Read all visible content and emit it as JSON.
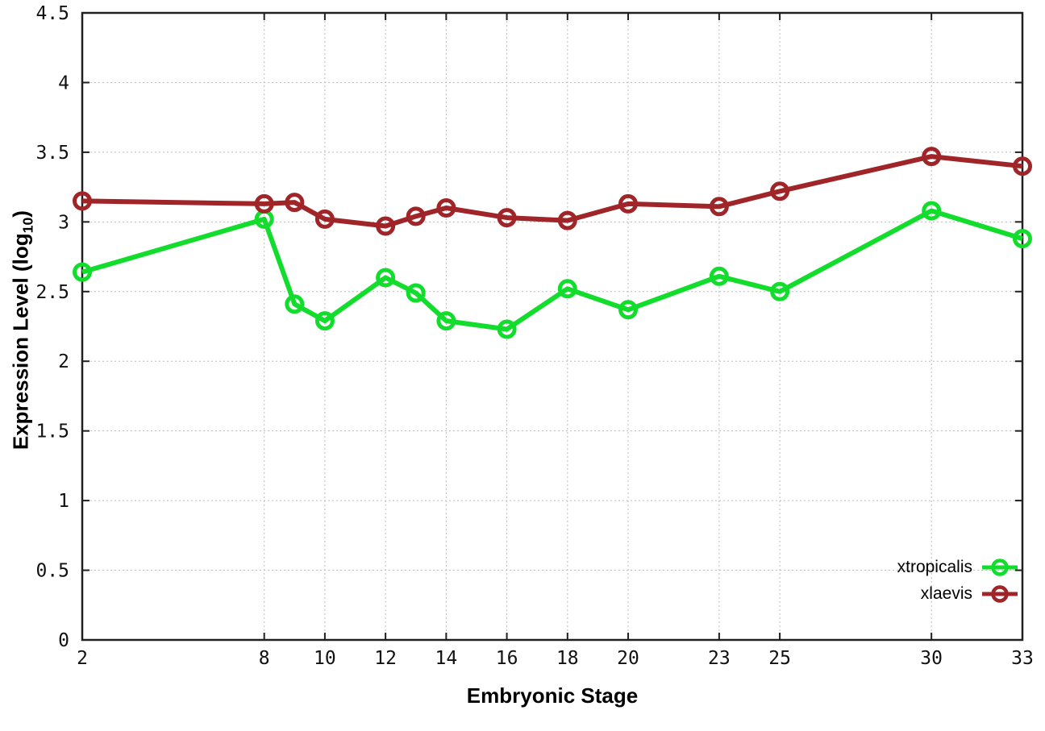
{
  "chart_data": {
    "type": "line",
    "title": "",
    "xlabel": "Embryonic Stage",
    "ylabel": "Expression Level (log10)",
    "ylabel_parts": {
      "prefix": "Expression Level (log",
      "sub": "10",
      "suffix": ")"
    },
    "x": [
      2,
      8,
      9,
      10,
      12,
      13,
      14,
      16,
      18,
      20,
      23,
      25,
      30,
      33
    ],
    "xticks": [
      2,
      8,
      10,
      12,
      14,
      16,
      18,
      20,
      23,
      25,
      30,
      33
    ],
    "yticks": [
      0,
      0.5,
      1,
      1.5,
      2,
      2.5,
      3,
      3.5,
      4,
      4.5
    ],
    "xlim": [
      2,
      33
    ],
    "ylim": [
      0,
      4.5
    ],
    "grid": true,
    "grid_style": "dotted",
    "legend_position": "bottom-right",
    "marker": "open-circle",
    "series": [
      {
        "name": "xtropicalis",
        "color": "#12dd2c",
        "values": [
          2.64,
          3.02,
          2.41,
          2.29,
          2.6,
          2.49,
          2.29,
          2.23,
          2.52,
          2.37,
          2.61,
          2.5,
          3.08,
          2.88
        ]
      },
      {
        "name": "xlaevis",
        "color": "#a02528",
        "values": [
          3.15,
          3.13,
          3.14,
          3.02,
          2.97,
          3.04,
          3.1,
          3.03,
          3.01,
          3.13,
          3.11,
          3.22,
          3.47,
          3.4
        ]
      }
    ]
  }
}
